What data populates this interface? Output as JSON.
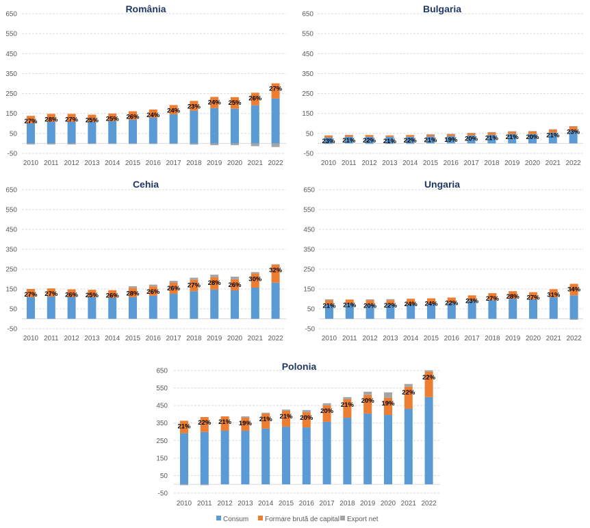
{
  "chart_data": [
    {
      "type": "bar",
      "stacked": true,
      "title": "România",
      "categories": [
        "2010",
        "2011",
        "2012",
        "2013",
        "2014",
        "2015",
        "2016",
        "2017",
        "2018",
        "2019",
        "2020",
        "2021",
        "2022"
      ],
      "series": [
        {
          "name": "Consum",
          "values": [
            101,
            108,
            108,
            108,
            112,
            119,
            129,
            146,
            164,
            177,
            174,
            191,
            225
          ]
        },
        {
          "name": "Formare brută de capital",
          "values": [
            37,
            40,
            40,
            36,
            38,
            42,
            41,
            46,
            49,
            56,
            58,
            63,
            76
          ]
        },
        {
          "name": "Export net",
          "values": [
            -5,
            -5,
            -5,
            -3,
            -3,
            -3,
            -3,
            -3,
            -6,
            -9,
            -9,
            -14,
            -18
          ]
        }
      ],
      "data_labels": [
        "27%",
        "28%",
        "27%",
        "25%",
        "25%",
        "26%",
        "24%",
        "24%",
        "23%",
        "24%",
        "25%",
        "26%",
        "27%"
      ],
      "yticks": [
        "650",
        "550",
        "450",
        "350",
        "250",
        "150",
        "50",
        "-50"
      ],
      "ylim": [
        -50,
        650
      ],
      "grid": true
    },
    {
      "type": "bar",
      "stacked": true,
      "title": "Bulgaria",
      "categories": [
        "2010",
        "2011",
        "2012",
        "2013",
        "2014",
        "2015",
        "2016",
        "2017",
        "2018",
        "2019",
        "2020",
        "2021",
        "2022"
      ],
      "series": [
        {
          "name": "Consum",
          "values": [
            30,
            33,
            33,
            33,
            33,
            35,
            36,
            40,
            43,
            47,
            47,
            54,
            64
          ]
        },
        {
          "name": "Formare brută de capital",
          "values": [
            10,
            9,
            9,
            7,
            9,
            9,
            10,
            11,
            12,
            13,
            13,
            15,
            21
          ]
        },
        {
          "name": "Export net",
          "values": [
            -1,
            1,
            -1,
            -1,
            -1,
            2,
            2,
            2,
            2,
            1,
            2,
            2,
            2
          ]
        }
      ],
      "data_labels": [
        "23%",
        "21%",
        "22%",
        "21%",
        "22%",
        "21%",
        "19%",
        "20%",
        "21%",
        "21%",
        "20%",
        "21%",
        "23%"
      ],
      "yticks": [
        "650",
        "550",
        "450",
        "350",
        "250",
        "150",
        "50",
        "-50"
      ],
      "ylim": [
        -50,
        650
      ],
      "grid": true
    },
    {
      "type": "bar",
      "stacked": true,
      "title": "Cehia",
      "categories": [
        "2010",
        "2011",
        "2012",
        "2013",
        "2014",
        "2015",
        "2016",
        "2017",
        "2018",
        "2019",
        "2020",
        "2021",
        "2022"
      ],
      "series": [
        {
          "name": "Consum",
          "values": [
            109,
            112,
            109,
            109,
            106,
            109,
            116,
            126,
            139,
            147,
            143,
            157,
            182
          ]
        },
        {
          "name": "Formare brută de capital",
          "values": [
            41,
            41,
            39,
            37,
            38,
            47,
            47,
            55,
            57,
            62,
            56,
            71,
            90
          ]
        },
        {
          "name": "Export net",
          "values": [
            0,
            0,
            0,
            0,
            0,
            8,
            9,
            10,
            11,
            13,
            13,
            7,
            3
          ]
        }
      ],
      "data_labels": [
        "27%",
        "27%",
        "26%",
        "25%",
        "26%",
        "28%",
        "26%",
        "26%",
        "27%",
        "28%",
        "26%",
        "30%",
        "32%"
      ],
      "yticks": [
        "650",
        "550",
        "450",
        "350",
        "250",
        "150",
        "50",
        "-50"
      ],
      "ylim": [
        -50,
        650
      ],
      "grid": true
    },
    {
      "type": "bar",
      "stacked": true,
      "title": "Ungaria",
      "categories": [
        "2010",
        "2011",
        "2012",
        "2013",
        "2014",
        "2015",
        "2016",
        "2017",
        "2018",
        "2019",
        "2020",
        "2021",
        "2022"
      ],
      "series": [
        {
          "name": "Consum",
          "values": [
            73,
            76,
            73,
            73,
            73,
            76,
            80,
            91,
            94,
            101,
            98,
            108,
            118
          ]
        },
        {
          "name": "Formare brută de capital",
          "values": [
            20,
            21,
            20,
            21,
            28,
            27,
            27,
            27,
            35,
            38,
            36,
            41,
            58
          ]
        },
        {
          "name": "Export net",
          "values": [
            5,
            0,
            5,
            5,
            0,
            0,
            0,
            0,
            0,
            0,
            0,
            0,
            -5
          ]
        }
      ],
      "data_labels": [
        "21%",
        "21%",
        "20%",
        "22%",
        "24%",
        "24%",
        "22%",
        "23%",
        "27%",
        "28%",
        "27%",
        "31%",
        "34%"
      ],
      "yticks": [
        "650",
        "550",
        "450",
        "350",
        "250",
        "150",
        "50",
        "-50"
      ],
      "ylim": [
        -50,
        650
      ],
      "grid": true
    },
    {
      "type": "bar",
      "stacked": true,
      "title": "Polonia",
      "categories": [
        "2010",
        "2011",
        "2012",
        "2013",
        "2014",
        "2015",
        "2016",
        "2017",
        "2018",
        "2019",
        "2020",
        "2021",
        "2022"
      ],
      "series": [
        {
          "name": "Consum",
          "values": [
            291,
            299,
            306,
            306,
            318,
            329,
            325,
            357,
            380,
            404,
            396,
            431,
            498
          ]
        },
        {
          "name": "Formare brută de capital",
          "values": [
            72,
            85,
            82,
            74,
            86,
            91,
            87,
            94,
            106,
            106,
            98,
            126,
            145
          ]
        },
        {
          "name": "Export net",
          "values": [
            -5,
            -5,
            0,
            8,
            5,
            7,
            12,
            12,
            12,
            19,
            31,
            16,
            8
          ]
        }
      ],
      "data_labels": [
        "21%",
        "22%",
        "21%",
        "19%",
        "21%",
        "21%",
        "20%",
        "20%",
        "21%",
        "20%",
        "19%",
        "22%",
        "22%"
      ],
      "yticks": [
        "650",
        "550",
        "450",
        "350",
        "250",
        "150",
        "50",
        "-50"
      ],
      "ylim": [
        -50,
        650
      ],
      "grid": true
    }
  ],
  "legend": {
    "placement": "bottom",
    "items": [
      {
        "label": "Consum",
        "color": "#5b9bd5"
      },
      {
        "label": "Formare brută de capital",
        "color": "#ed7d31"
      },
      {
        "label": "Export net",
        "color": "#a5a5a5"
      }
    ]
  },
  "colors": {
    "consum": "#5b9bd5",
    "capital": "#ed7d31",
    "export": "#a5a5a5",
    "title": "#1f3864",
    "grid": "#d9d9d9",
    "axis_text": "#595959"
  }
}
